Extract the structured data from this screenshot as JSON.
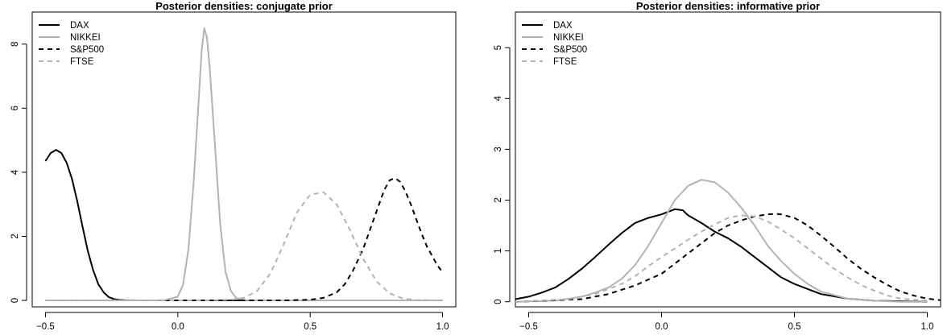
{
  "chart_data": [
    {
      "type": "line",
      "title": "Posterior densities: conjugate prior",
      "xlabel": "",
      "ylabel": "",
      "xlim": [
        -0.55,
        1.05
      ],
      "ylim": [
        -0.2,
        9.0
      ],
      "xticks": [
        -0.5,
        0.0,
        0.5,
        1.0
      ],
      "xtick_labels": [
        "−0.5",
        "0.0",
        "0.5",
        "1.0"
      ],
      "yticks": [
        0,
        2,
        4,
        6,
        8
      ],
      "ytick_labels": [
        "0",
        "2",
        "4",
        "6",
        "8"
      ],
      "legend_position": "top-left",
      "series": [
        {
          "name": "DAX",
          "color": "#000000",
          "dash": "solid",
          "x": [
            -0.5,
            -0.48,
            -0.46,
            -0.44,
            -0.42,
            -0.4,
            -0.38,
            -0.36,
            -0.34,
            -0.32,
            -0.3,
            -0.28,
            -0.26,
            -0.24,
            -0.22,
            -0.2,
            -0.15,
            -0.1,
            0.0,
            0.2,
            0.4,
            0.6,
            0.8,
            1.0
          ],
          "y": [
            4.35,
            4.6,
            4.7,
            4.6,
            4.3,
            3.8,
            3.1,
            2.3,
            1.55,
            0.95,
            0.5,
            0.25,
            0.1,
            0.04,
            0.015,
            0.005,
            0.0,
            0.0,
            0.0,
            0.0,
            0.0,
            0.0,
            0.0,
            0.0
          ]
        },
        {
          "name": "NIKKEI",
          "color": "#b3b3b3",
          "dash": "solid",
          "x": [
            -0.5,
            -0.1,
            -0.05,
            0.0,
            0.02,
            0.04,
            0.06,
            0.08,
            0.09,
            0.1,
            0.11,
            0.12,
            0.14,
            0.16,
            0.18,
            0.2,
            0.22,
            0.25,
            0.3,
            0.5,
            0.8,
            1.0
          ],
          "y": [
            0.0,
            0.0,
            0.005,
            0.12,
            0.5,
            1.6,
            3.7,
            6.4,
            7.8,
            8.5,
            8.2,
            7.3,
            4.9,
            2.4,
            0.9,
            0.3,
            0.08,
            0.01,
            0.0,
            0.0,
            0.0,
            0.0
          ]
        },
        {
          "name": "S&P500",
          "color": "#000000",
          "dash": "dashed",
          "x": [
            -0.5,
            0.2,
            0.4,
            0.5,
            0.55,
            0.6,
            0.63,
            0.66,
            0.7,
            0.73,
            0.76,
            0.78,
            0.8,
            0.82,
            0.84,
            0.86,
            0.88,
            0.9,
            0.92,
            0.94,
            0.96,
            0.98,
            1.0
          ],
          "y": [
            0.0,
            0.0,
            0.0,
            0.02,
            0.08,
            0.25,
            0.5,
            0.9,
            1.6,
            2.3,
            3.0,
            3.45,
            3.75,
            3.82,
            3.7,
            3.4,
            3.0,
            2.55,
            2.1,
            1.7,
            1.4,
            1.1,
            0.88
          ]
        },
        {
          "name": "FTSE",
          "color": "#b3b3b3",
          "dash": "dashed",
          "x": [
            -0.5,
            0.1,
            0.2,
            0.25,
            0.3,
            0.35,
            0.4,
            0.45,
            0.5,
            0.55,
            0.6,
            0.65,
            0.7,
            0.75,
            0.8,
            0.85,
            0.9,
            1.0
          ],
          "y": [
            0.0,
            0.0,
            0.02,
            0.08,
            0.3,
            0.85,
            1.75,
            2.75,
            3.3,
            3.38,
            3.0,
            2.2,
            1.3,
            0.6,
            0.22,
            0.06,
            0.01,
            0.0
          ]
        }
      ]
    },
    {
      "type": "line",
      "title": "Posterior densities: informative prior",
      "xlabel": "",
      "ylabel": "",
      "xlim": [
        -0.55,
        1.05
      ],
      "ylim": [
        -0.1,
        5.7
      ],
      "xticks": [
        -0.5,
        0.0,
        0.5,
        1.0
      ],
      "xtick_labels": [
        "−0.5",
        "0.0",
        "0.5",
        "1.0"
      ],
      "yticks": [
        0,
        1,
        2,
        3,
        4,
        5
      ],
      "ytick_labels": [
        "0",
        "1",
        "2",
        "3",
        "4",
        "5"
      ],
      "legend_position": "top-left",
      "series": [
        {
          "name": "DAX",
          "color": "#000000",
          "dash": "solid",
          "x": [
            -0.55,
            -0.5,
            -0.45,
            -0.4,
            -0.35,
            -0.3,
            -0.25,
            -0.2,
            -0.15,
            -0.1,
            -0.05,
            0.0,
            0.05,
            0.08,
            0.1,
            0.15,
            0.2,
            0.25,
            0.3,
            0.35,
            0.4,
            0.45,
            0.5,
            0.55,
            0.6,
            0.7,
            0.8,
            0.9,
            1.0
          ],
          "y": [
            0.05,
            0.1,
            0.18,
            0.28,
            0.45,
            0.65,
            0.88,
            1.12,
            1.35,
            1.55,
            1.65,
            1.72,
            1.82,
            1.8,
            1.7,
            1.55,
            1.38,
            1.25,
            1.08,
            0.88,
            0.68,
            0.48,
            0.35,
            0.25,
            0.15,
            0.06,
            0.02,
            0.01,
            0.0
          ]
        },
        {
          "name": "NIKKEI",
          "color": "#b3b3b3",
          "dash": "solid",
          "x": [
            -0.55,
            -0.4,
            -0.3,
            -0.25,
            -0.2,
            -0.15,
            -0.1,
            -0.05,
            0.0,
            0.05,
            0.1,
            0.15,
            0.2,
            0.25,
            0.3,
            0.35,
            0.4,
            0.45,
            0.5,
            0.55,
            0.6,
            0.7,
            0.8,
            0.9,
            1.0
          ],
          "y": [
            0.0,
            0.02,
            0.1,
            0.18,
            0.28,
            0.45,
            0.72,
            1.1,
            1.55,
            2.0,
            2.28,
            2.4,
            2.35,
            2.15,
            1.85,
            1.5,
            1.1,
            0.8,
            0.55,
            0.35,
            0.2,
            0.06,
            0.02,
            0.0,
            0.0
          ]
        },
        {
          "name": "S&P500",
          "color": "#000000",
          "dash": "dashed",
          "x": [
            -0.55,
            -0.3,
            -0.2,
            -0.1,
            0.0,
            0.05,
            0.1,
            0.15,
            0.2,
            0.25,
            0.3,
            0.35,
            0.4,
            0.43,
            0.45,
            0.5,
            0.55,
            0.6,
            0.65,
            0.7,
            0.75,
            0.8,
            0.85,
            0.9,
            0.95,
            1.0,
            1.05
          ],
          "y": [
            0.0,
            0.05,
            0.15,
            0.32,
            0.55,
            0.75,
            0.95,
            1.15,
            1.35,
            1.5,
            1.6,
            1.68,
            1.72,
            1.73,
            1.72,
            1.65,
            1.5,
            1.3,
            1.08,
            0.85,
            0.65,
            0.48,
            0.33,
            0.2,
            0.12,
            0.06,
            0.03
          ]
        },
        {
          "name": "FTSE",
          "color": "#b3b3b3",
          "dash": "dashed",
          "x": [
            -0.55,
            -0.35,
            -0.25,
            -0.15,
            -0.1,
            -0.05,
            0.0,
            0.05,
            0.1,
            0.15,
            0.2,
            0.25,
            0.3,
            0.35,
            0.4,
            0.45,
            0.5,
            0.55,
            0.6,
            0.65,
            0.7,
            0.75,
            0.8,
            0.85,
            0.9,
            1.0
          ],
          "y": [
            0.0,
            0.05,
            0.15,
            0.35,
            0.5,
            0.7,
            0.88,
            1.05,
            1.22,
            1.38,
            1.52,
            1.65,
            1.7,
            1.68,
            1.58,
            1.42,
            1.25,
            1.05,
            0.85,
            0.65,
            0.48,
            0.33,
            0.22,
            0.12,
            0.06,
            0.02
          ]
        }
      ]
    }
  ]
}
